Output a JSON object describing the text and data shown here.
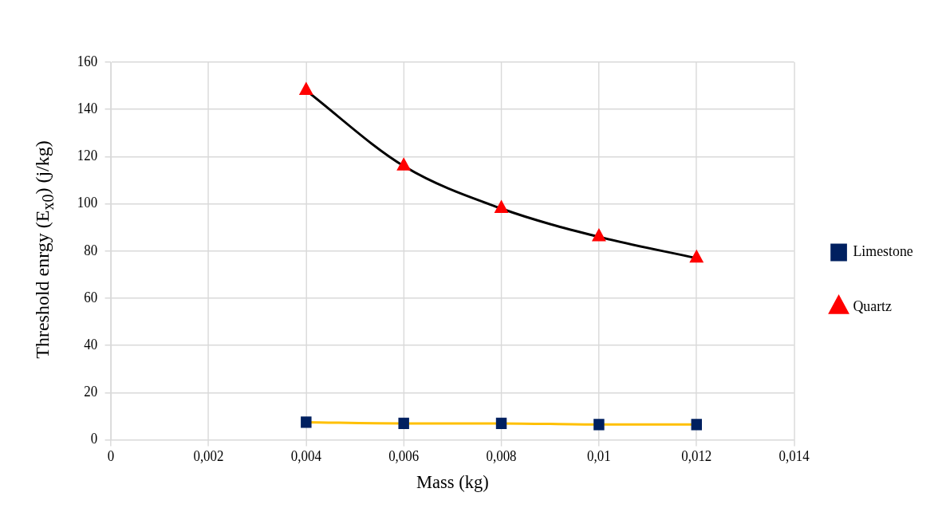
{
  "chart_data": {
    "type": "line",
    "xlabel": "Mass (kg)",
    "ylabel": "Threshold enrgy (E$_{x0}$) (j/kg)",
    "x": [
      0.004,
      0.006,
      0.008,
      0.01,
      0.012
    ],
    "series": [
      {
        "name": "Limestone",
        "color": "#ffc000",
        "colors": [
          "#002060",
          "#002060",
          "#002060",
          "#002060",
          "#002060"
        ],
        "marker": "square",
        "values": [
          7.5,
          7,
          7,
          6.5,
          6.5
        ]
      },
      {
        "name": "Quartz",
        "color": "#000000",
        "colors": [
          "#ff0000",
          "#ff0000",
          "#ff0000",
          "#ff0000",
          "#ff0000"
        ],
        "marker": "triangle",
        "values": [
          148,
          116,
          98,
          86,
          77
        ]
      }
    ],
    "xlim": [
      0,
      0.014
    ],
    "xticks": [
      0,
      {
        "value": 0.002,
        "label": "0,002"
      },
      {
        "value": 0.004,
        "label": "0,004"
      },
      {
        "value": 0.006,
        "label": "0,006"
      },
      {
        "value": 0.008,
        "label": "0,008"
      },
      {
        "value": 0.01,
        "label": "0,01"
      },
      {
        "value": 0.012,
        "label": "0,012"
      },
      {
        "value": 0.014,
        "label": "0,014"
      }
    ],
    "ylim": [
      0,
      160
    ],
    "yticks": [
      0,
      20,
      40,
      60,
      80,
      100,
      120,
      140,
      160
    ],
    "grid": true,
    "legend": "right"
  }
}
